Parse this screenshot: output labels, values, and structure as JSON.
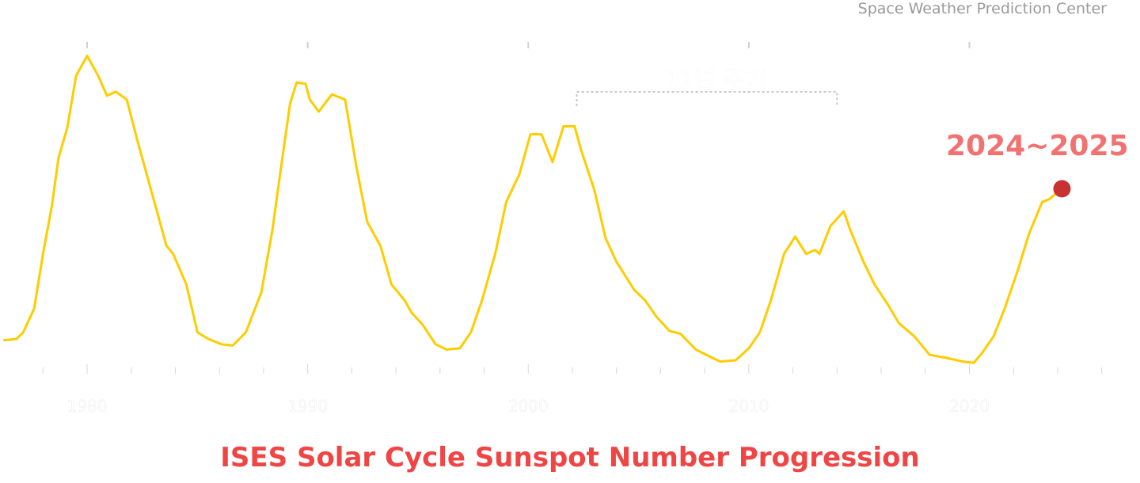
{
  "source": "Space Weather Prediction Center",
  "chart_data": {
    "type": "line",
    "title": "ISES Solar Cycle Sunspot Number Progression",
    "xlabel": "",
    "ylabel": "",
    "xlim": [
      1976.05,
      2026.3
    ],
    "ylim": [
      0,
      274
    ],
    "grid": false,
    "x_tick_labels": [
      "1980",
      "1990",
      "2000",
      "2010",
      "2020"
    ],
    "x_ticks": [
      1980,
      1990,
      2000,
      2010,
      2020
    ],
    "minor_tick_step": 2,
    "annotation": {
      "text": "11년 주기",
      "x_range": [
        2002.2,
        2014.0
      ]
    },
    "highlight": {
      "label": "2024~2025",
      "x": 2024.2,
      "y": 132,
      "color": "#c83232"
    },
    "series": [
      {
        "name": "Sunspot Number",
        "color": "#ffcc00",
        "x": [
          1976.2,
          1976.8,
          1977.1,
          1977.6,
          1978.0,
          1978.4,
          1978.7,
          1979.1,
          1979.5,
          1980.0,
          1980.5,
          1980.9,
          1981.3,
          1981.8,
          1982.3,
          1982.9,
          1983.2,
          1983.6,
          1983.9,
          1984.5,
          1985.0,
          1985.5,
          1986.1,
          1986.6,
          1987.2,
          1987.9,
          1988.4,
          1988.8,
          1989.2,
          1989.5,
          1989.9,
          1990.1,
          1990.5,
          1991.1,
          1991.7,
          1992.2,
          1992.7,
          1993.3,
          1993.8,
          1994.4,
          1994.7,
          1995.2,
          1995.8,
          1996.3,
          1996.9,
          1997.4,
          1997.9,
          1998.5,
          1999.0,
          1999.6,
          2000.1,
          2000.6,
          2001.1,
          2001.6,
          2002.1,
          2002.4,
          2003.0,
          2003.5,
          2004.0,
          2004.8,
          2005.3,
          2005.8,
          2006.4,
          2006.9,
          2007.6,
          2008.2,
          2008.7,
          2009.4,
          2010.0,
          2010.5,
          2011.0,
          2011.6,
          2012.1,
          2012.6,
          2013.0,
          2013.2,
          2013.7,
          2014.3,
          2014.6,
          2015.2,
          2015.7,
          2016.3,
          2016.8,
          2017.5,
          2018.2,
          2018.9,
          2019.7,
          2020.2,
          2020.6,
          2021.1,
          2021.6,
          2022.2,
          2022.7,
          2023.3,
          2023.6,
          2024.2
        ],
        "y": [
          18,
          19,
          24,
          42,
          83,
          119,
          155,
          178,
          217,
          232,
          217,
          202,
          205,
          199,
          167,
          131,
          113,
          89,
          83,
          60,
          24,
          19,
          15,
          14,
          24,
          54,
          101,
          149,
          196,
          212,
          211,
          199,
          190,
          203,
          199,
          149,
          107,
          89,
          60,
          48,
          39,
          30,
          15,
          11,
          12,
          24,
          48,
          83,
          122,
          143,
          173,
          173,
          152,
          179,
          179,
          161,
          131,
          95,
          77,
          56,
          48,
          36,
          25,
          23,
          11,
          6,
          2,
          3,
          12,
          24,
          48,
          83,
          96,
          83,
          86,
          83,
          104,
          115,
          101,
          77,
          60,
          45,
          31,
          21,
          7,
          5,
          2,
          1,
          9,
          21,
          42,
          71,
          98,
          122,
          124,
          132
        ]
      }
    ]
  }
}
